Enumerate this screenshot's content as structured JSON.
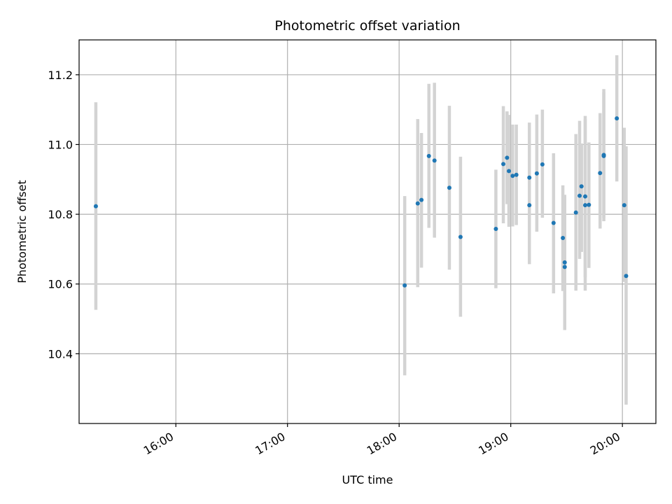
{
  "chart_data": {
    "type": "scatter",
    "title": "Photometric offset variation",
    "xlabel": "UTC time",
    "ylabel": "Photometric offset",
    "x_unit": "UTC time (HH:MM)",
    "xlim": [
      "15:08",
      "20:18"
    ],
    "ylim": [
      10.2,
      11.3
    ],
    "x_ticks": [
      "16:00",
      "17:00",
      "18:00",
      "19:00",
      "20:00"
    ],
    "y_ticks": [
      10.4,
      10.6,
      10.8,
      11.0,
      11.2
    ],
    "y_tick_labels": [
      "10.4",
      "10.6",
      "10.8",
      "11.0",
      "11.2"
    ],
    "grid": true,
    "marker_color": "#1f77b4",
    "errorbar_color": "#d3d3d3",
    "points": [
      {
        "x": "15:17",
        "y": 10.823,
        "lo": 10.526,
        "hi": 11.121
      },
      {
        "x": "18:03",
        "y": 10.596,
        "lo": 10.338,
        "hi": 10.852
      },
      {
        "x": "18:10",
        "y": 10.831,
        "lo": 10.591,
        "hi": 11.073
      },
      {
        "x": "18:12",
        "y": 10.841,
        "lo": 10.647,
        "hi": 11.033
      },
      {
        "x": "18:16",
        "y": 10.967,
        "lo": 10.761,
        "hi": 11.174
      },
      {
        "x": "18:19",
        "y": 10.954,
        "lo": 10.733,
        "hi": 11.177
      },
      {
        "x": "18:27",
        "y": 10.876,
        "lo": 10.641,
        "hi": 11.111
      },
      {
        "x": "18:33",
        "y": 10.735,
        "lo": 10.506,
        "hi": 10.965
      },
      {
        "x": "18:52",
        "y": 10.758,
        "lo": 10.588,
        "hi": 10.928
      },
      {
        "x": "18:56",
        "y": 10.944,
        "lo": 10.774,
        "hi": 11.11
      },
      {
        "x": "18:58",
        "y": 10.962,
        "lo": 10.829,
        "hi": 11.095
      },
      {
        "x": "18:59",
        "y": 10.924,
        "lo": 10.764,
        "hi": 11.085
      },
      {
        "x": "19:01",
        "y": 10.91,
        "lo": 10.765,
        "hi": 11.057
      },
      {
        "x": "19:03",
        "y": 10.913,
        "lo": 10.769,
        "hi": 11.057
      },
      {
        "x": "19:10",
        "y": 10.826,
        "lo": 10.657,
        "hi": 10.995
      },
      {
        "x": "19:10",
        "y": 10.905,
        "lo": 10.747,
        "hi": 11.063
      },
      {
        "x": "19:14",
        "y": 10.917,
        "lo": 10.75,
        "hi": 11.086
      },
      {
        "x": "19:17",
        "y": 10.943,
        "lo": 10.79,
        "hi": 11.1
      },
      {
        "x": "19:23",
        "y": 10.775,
        "lo": 10.573,
        "hi": 10.975
      },
      {
        "x": "19:28",
        "y": 10.732,
        "lo": 10.58,
        "hi": 10.883
      },
      {
        "x": "19:29",
        "y": 10.662,
        "lo": 10.468,
        "hi": 10.856
      },
      {
        "x": "19:29",
        "y": 10.649,
        "lo": 10.473,
        "hi": 10.826
      },
      {
        "x": "19:35",
        "y": 10.805,
        "lo": 10.581,
        "hi": 11.03
      },
      {
        "x": "19:37",
        "y": 10.853,
        "lo": 10.672,
        "hi": 11.068
      },
      {
        "x": "19:38",
        "y": 10.88,
        "lo": 10.692,
        "hi": 11.003
      },
      {
        "x": "19:40",
        "y": 10.826,
        "lo": 10.581,
        "hi": 11.072
      },
      {
        "x": "19:40",
        "y": 10.851,
        "lo": 10.62,
        "hi": 11.082
      },
      {
        "x": "19:42",
        "y": 10.827,
        "lo": 10.646,
        "hi": 11.006
      },
      {
        "x": "19:48",
        "y": 10.918,
        "lo": 10.759,
        "hi": 11.09
      },
      {
        "x": "19:50",
        "y": 10.967,
        "lo": 10.78,
        "hi": 11.159
      },
      {
        "x": "19:50",
        "y": 10.97,
        "lo": 10.79,
        "hi": 11.15
      },
      {
        "x": "19:57",
        "y": 11.075,
        "lo": 10.894,
        "hi": 11.256
      },
      {
        "x": "20:01",
        "y": 10.826,
        "lo": 10.606,
        "hi": 11.048
      },
      {
        "x": "20:02",
        "y": 10.623,
        "lo": 10.254,
        "hi": 10.995
      }
    ]
  }
}
